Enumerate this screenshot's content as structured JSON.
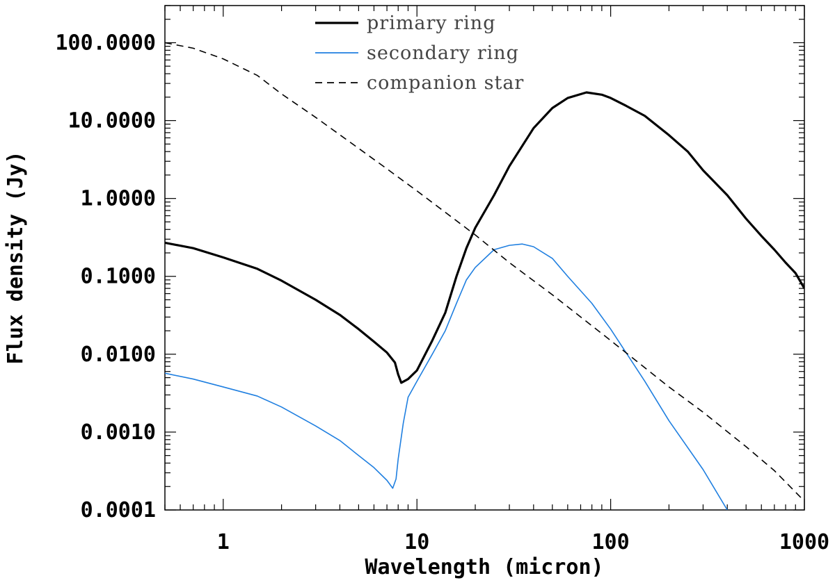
{
  "chart_data": {
    "type": "line",
    "title": "",
    "xlabel": "Wavelength (micron)",
    "ylabel": "Flux density (Jy)",
    "xscale": "log",
    "yscale": "log",
    "xlim": [
      0.5,
      1000
    ],
    "ylim": [
      0.0001,
      300
    ],
    "x_ticks": [
      1,
      10,
      100,
      1000
    ],
    "x_tick_labels": [
      "1",
      "10",
      "100",
      "1000"
    ],
    "y_ticks": [
      0.0001,
      0.001,
      0.01,
      0.1,
      1,
      10,
      100
    ],
    "y_tick_labels": [
      "0.0001",
      "0.0010",
      "0.0100",
      "0.1000",
      "1.0000",
      "10.0000",
      "100.0000"
    ],
    "legend_position": "top-center",
    "series": [
      {
        "name": "primary ring",
        "color": "#000000",
        "style": "solid",
        "width": "thick",
        "x": [
          0.5,
          0.7,
          1.0,
          1.5,
          2.0,
          3.0,
          4.0,
          5.0,
          6.0,
          7.0,
          7.7,
          8.0,
          8.3,
          9.0,
          10,
          12,
          14,
          16,
          18,
          20,
          25,
          30,
          40,
          50,
          60,
          75,
          90,
          100,
          120,
          150,
          200,
          250,
          300,
          400,
          500,
          600,
          700,
          800,
          900,
          1000
        ],
        "y": [
          0.27,
          0.23,
          0.175,
          0.125,
          0.088,
          0.05,
          0.032,
          0.021,
          0.0145,
          0.0105,
          0.0078,
          0.0055,
          0.0043,
          0.0048,
          0.0062,
          0.015,
          0.034,
          0.1,
          0.23,
          0.42,
          1.1,
          2.6,
          8.0,
          14.5,
          19.5,
          23.0,
          21.5,
          19.5,
          15.5,
          11.5,
          6.5,
          4.0,
          2.3,
          1.1,
          0.55,
          0.33,
          0.22,
          0.15,
          0.11,
          0.07
        ]
      },
      {
        "name": "secondary ring",
        "color": "#1f7fe0",
        "style": "solid",
        "width": "thin",
        "x": [
          0.5,
          0.7,
          1.0,
          1.5,
          2.0,
          3.0,
          4.0,
          5.0,
          6.0,
          7.0,
          7.5,
          7.8,
          8.0,
          8.5,
          9.0,
          10,
          12,
          14,
          16,
          18,
          20,
          25,
          30,
          35,
          40,
          50,
          60,
          80,
          100,
          150,
          200,
          300,
          400
        ],
        "y": [
          0.0057,
          0.0048,
          0.0038,
          0.0029,
          0.0021,
          0.0012,
          0.00078,
          0.0005,
          0.00035,
          0.00024,
          0.00019,
          0.00025,
          0.00045,
          0.0013,
          0.0028,
          0.0045,
          0.01,
          0.02,
          0.045,
          0.09,
          0.13,
          0.22,
          0.25,
          0.26,
          0.24,
          0.17,
          0.1,
          0.045,
          0.021,
          0.0045,
          0.0014,
          0.00033,
          0.0001
        ]
      },
      {
        "name": "companion star",
        "color": "#000000",
        "style": "dashed",
        "width": "thin",
        "x": [
          0.5,
          0.7,
          1.0,
          1.5,
          2.0,
          3.0,
          5.0,
          7.0,
          10,
          20,
          30,
          50,
          100,
          200,
          300,
          500,
          700,
          1000
        ],
        "y": [
          100,
          85,
          62,
          38,
          22,
          11,
          4.4,
          2.4,
          1.25,
          0.34,
          0.15,
          0.058,
          0.015,
          0.0038,
          0.0018,
          0.00065,
          0.00032,
          0.00013
        ]
      }
    ]
  }
}
